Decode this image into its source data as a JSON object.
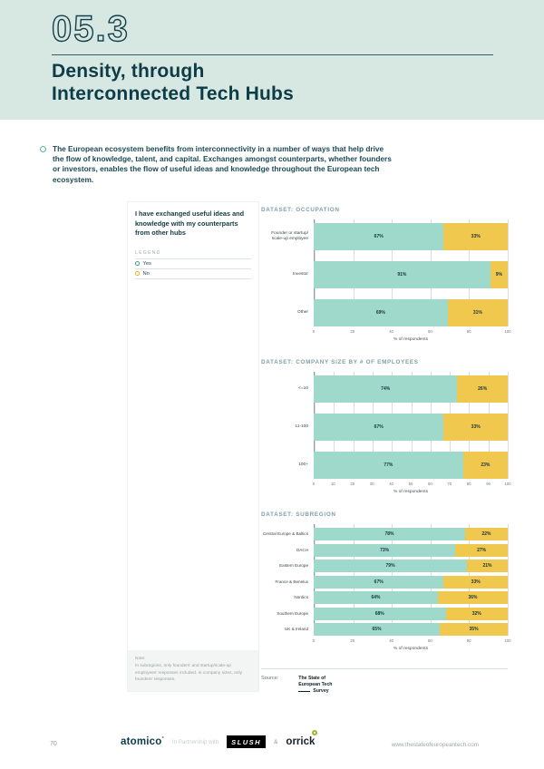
{
  "colors": {
    "header_bg": "#d7e8e3",
    "dark_teal": "#0d3c47",
    "yes_teal": "#9fd9cb",
    "no_yellow": "#f1c84e"
  },
  "header": {
    "section_number": "05.3",
    "title_line1": "Density, through",
    "title_line2": "Interconnected Tech Hubs"
  },
  "intro": {
    "text": "The European ecosystem benefits from interconnectivity in a number of ways that help drive the flow of knowledge, talent, and capital. Exchanges amongst counterparts, whether founders or investors, enables the flow of useful ideas and knowledge throughout the European tech ecosystem."
  },
  "panel": {
    "question": "I have exchanged useful ideas and knowledge with my counterparts from other hubs",
    "legend_label": "LEGEND",
    "legend": [
      {
        "label": "Yes",
        "color": "#45a695"
      },
      {
        "label": "No",
        "color": "#e9bb33"
      }
    ],
    "note_label": "Note:",
    "note_text": "In subregions, only founders' and startup/scale-up employees' responses included. In company sizes, only founders' responses."
  },
  "chart_data": [
    {
      "type": "bar",
      "stacked": true,
      "orientation": "horizontal",
      "title": "DATASET: OCCUPATION",
      "categories": [
        "Founder or startup/\nscale-up employee",
        "Investor",
        "Other"
      ],
      "series": [
        {
          "name": "Yes",
          "color": "#9fd9cb",
          "values": [
            67,
            91,
            69
          ]
        },
        {
          "name": "No",
          "color": "#f1c84e",
          "values": [
            33,
            9,
            31
          ]
        }
      ],
      "xlabel": "% of respondents",
      "xlim": [
        0,
        100
      ],
      "ticks": [
        0,
        20,
        40,
        60,
        80,
        100
      ],
      "grid": true
    },
    {
      "type": "bar",
      "stacked": true,
      "orientation": "horizontal",
      "title": "DATASET: COMPANY SIZE BY # OF EMPLOYEES",
      "categories": [
        "<=10",
        "11-100",
        "100+"
      ],
      "series": [
        {
          "name": "Yes",
          "color": "#9fd9cb",
          "values": [
            74,
            67,
            77
          ]
        },
        {
          "name": "No",
          "color": "#f1c84e",
          "values": [
            26,
            33,
            23
          ]
        }
      ],
      "xlabel": "% of respondents",
      "xlim": [
        0,
        100
      ],
      "ticks": [
        0,
        10,
        20,
        30,
        40,
        50,
        60,
        70,
        80,
        90,
        100
      ],
      "grid": true
    },
    {
      "type": "bar",
      "stacked": true,
      "orientation": "horizontal",
      "title": "DATASET: SUBREGION",
      "categories": [
        "Central Europe & Baltics",
        "DACH",
        "Eastern Europe",
        "France & Benelux",
        "Nordics",
        "Southern Europe",
        "UK & Ireland"
      ],
      "series": [
        {
          "name": "Yes",
          "color": "#9fd9cb",
          "values": [
            78,
            73,
            79,
            67,
            64,
            68,
            65
          ]
        },
        {
          "name": "No",
          "color": "#f1c84e",
          "values": [
            22,
            27,
            21,
            33,
            36,
            32,
            35
          ]
        }
      ],
      "xlabel": "% of respondents",
      "xlim": [
        0,
        100
      ],
      "ticks": [
        0,
        20,
        40,
        60,
        80,
        100
      ],
      "grid": true
    }
  ],
  "source": {
    "label": "Source:",
    "logo_line1": "The State of",
    "logo_line2": "European Tech",
    "logo_line3": "Survey"
  },
  "footer": {
    "page_number": "70",
    "atomico": "atomico",
    "atomico_mark": "°",
    "partnership": "In Partnership with",
    "slush": "SLUSH",
    "ampersand": "&",
    "orrick": "orrick",
    "website": "www.thestateofeuropeantech.com"
  }
}
